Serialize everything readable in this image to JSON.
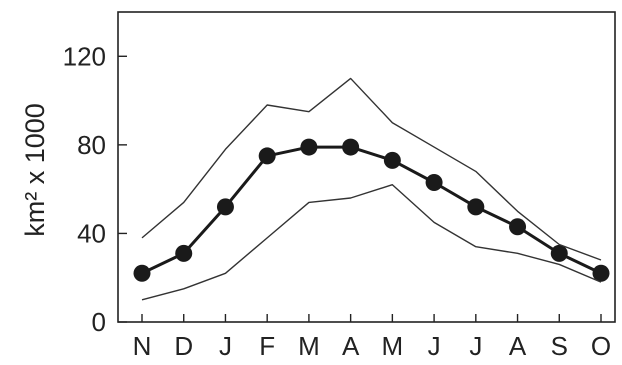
{
  "chart_data": {
    "type": "line",
    "categories": [
      "N",
      "D",
      "J",
      "F",
      "M",
      "A",
      "M",
      "J",
      "J",
      "A",
      "S",
      "O"
    ],
    "ylabel": "km² x 1000",
    "ylim": [
      0,
      140
    ],
    "yticks": [
      0,
      40,
      80,
      120
    ],
    "grid": false,
    "legend": "none",
    "series": [
      {
        "role": "mean",
        "values": [
          22,
          31,
          52,
          75,
          79,
          79,
          73,
          63,
          52,
          43,
          31,
          22
        ],
        "color": "#1a1a1a",
        "markers": true
      },
      {
        "role": "upper",
        "values": [
          38,
          54,
          78,
          98,
          95,
          110,
          90,
          79,
          68,
          50,
          35,
          28
        ],
        "color": "#333333",
        "markers": false
      },
      {
        "role": "lower",
        "values": [
          10,
          15,
          22,
          38,
          54,
          56,
          62,
          45,
          34,
          31,
          26,
          18
        ],
        "color": "#333333",
        "markers": false
      }
    ]
  }
}
